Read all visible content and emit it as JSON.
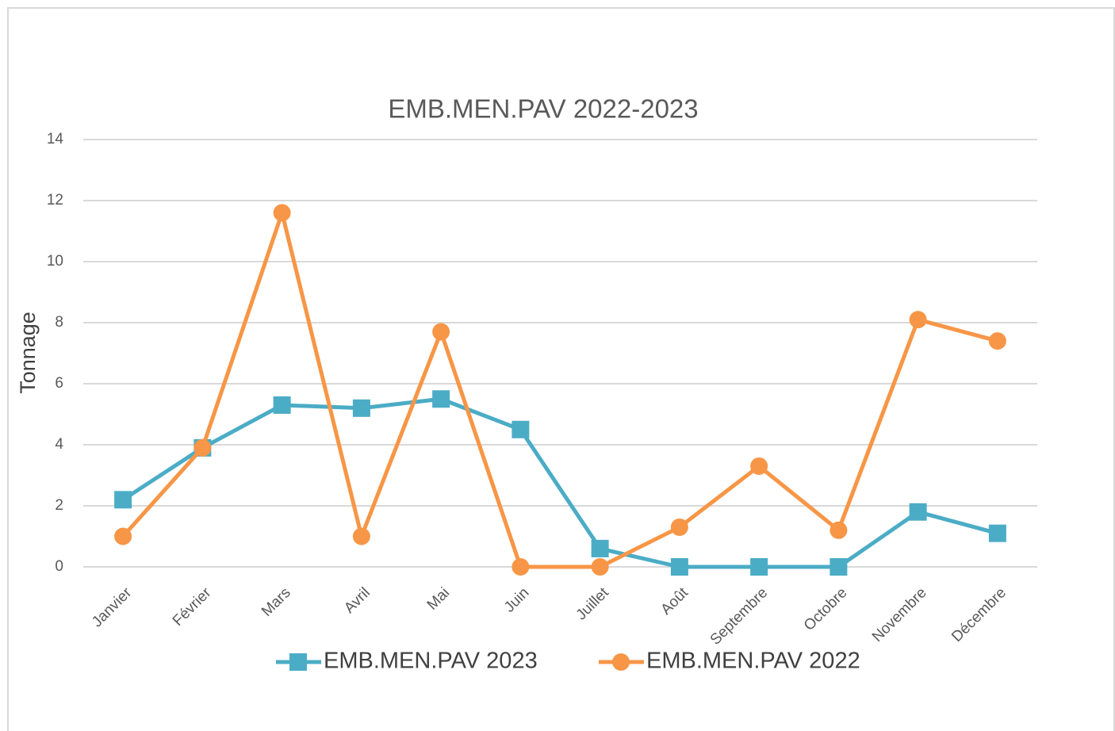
{
  "chart_data": {
    "type": "line",
    "title": "EMB.MEN.PAV 2022-2023",
    "y_label": "Tonnage",
    "categories": [
      "Janvier",
      "Février",
      "Mars",
      "Avril",
      "Mai",
      "Juin",
      "Juillet",
      "Août",
      "Septembre",
      "Octobre",
      "Novembre",
      "Décembre"
    ],
    "series": [
      {
        "name": "EMB.MEN.PAV 2023",
        "color": "#4BACC6",
        "marker": "square",
        "values": [
          2.2,
          3.9,
          5.3,
          5.2,
          5.5,
          4.5,
          0.6,
          0,
          0,
          0,
          1.8,
          1.1
        ]
      },
      {
        "name": "EMB.MEN.PAV 2022",
        "color": "#F79646",
        "marker": "circle",
        "values": [
          1.0,
          3.9,
          11.6,
          1.0,
          7.7,
          0,
          0,
          1.3,
          3.3,
          1.2,
          8.1,
          7.4
        ]
      }
    ],
    "ylim": [
      0,
      14
    ],
    "yticks": [
      0,
      2,
      4,
      6,
      8,
      10,
      12,
      14
    ],
    "grid": true,
    "legend": "bottom"
  }
}
